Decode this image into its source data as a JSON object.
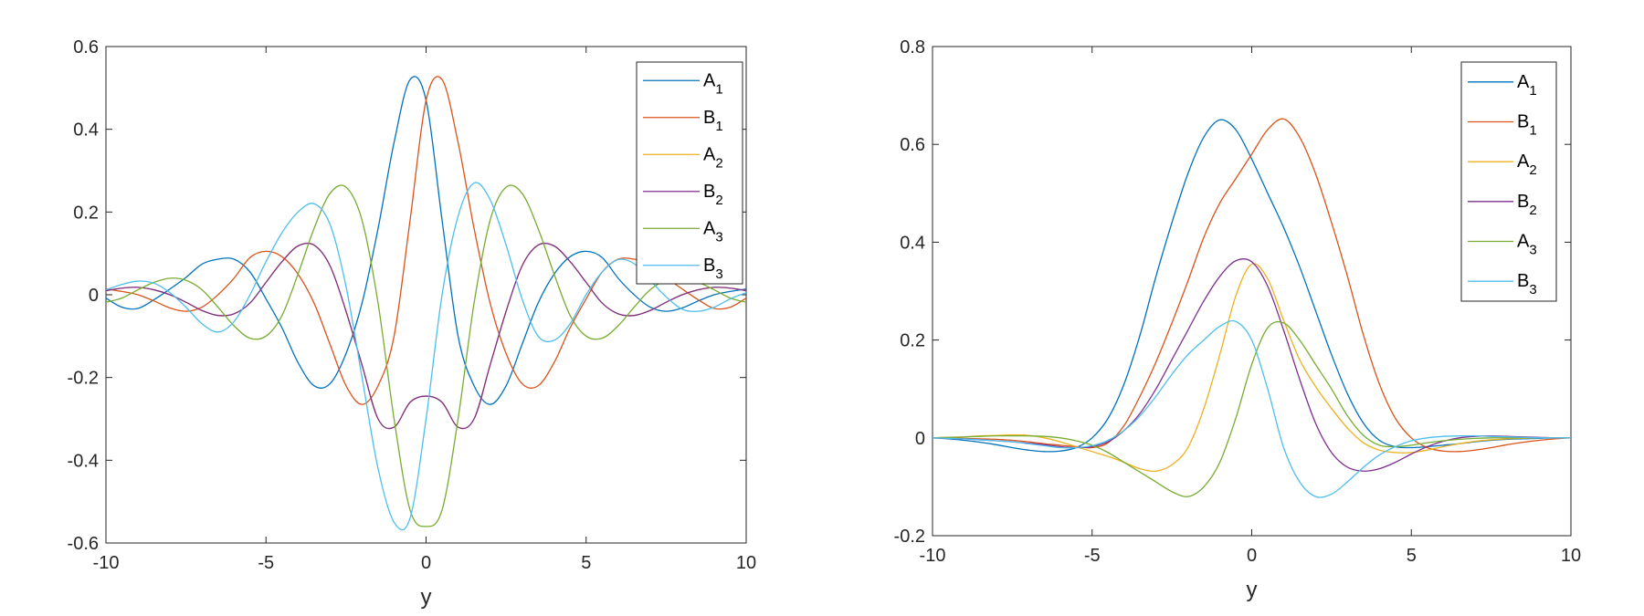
{
  "chart_data": [
    {
      "type": "line",
      "xlabel": "y",
      "ylabel": "",
      "xlim": [
        -10,
        10
      ],
      "ylim": [
        -0.6,
        0.6
      ],
      "xticks": [
        -10,
        -5,
        0,
        5,
        10
      ],
      "yticks": [
        -0.6,
        -0.4,
        -0.2,
        0,
        0.2,
        0.4,
        0.6
      ],
      "xtick_labels": [
        "-10",
        "-5",
        "0",
        "5",
        "10"
      ],
      "ytick_labels": [
        "-0.6",
        "-0.4",
        "-0.2",
        "0",
        "0.2",
        "0.4",
        "0.6"
      ],
      "grid": false,
      "legend_position": "top-right",
      "x": [
        -10,
        -9.5,
        -9,
        -8.5,
        -8,
        -7.5,
        -7,
        -6.5,
        -6,
        -5.5,
        -5,
        -4.5,
        -4,
        -3.5,
        -3,
        -2.5,
        -2,
        -1.5,
        -1,
        -0.5,
        0,
        0.5,
        1,
        1.5,
        2,
        2.5,
        3,
        3.5,
        4,
        4.5,
        5,
        5.5,
        6,
        6.5,
        7,
        7.5,
        8,
        8.5,
        9,
        9.5,
        10
      ],
      "series": [
        {
          "base": "A",
          "sub": "1",
          "color": "#0072BD",
          "values": [
            -0.008,
            -0.03,
            -0.033,
            -0.012,
            0.014,
            0.042,
            0.074,
            0.086,
            0.086,
            0.055,
            -0.01,
            -0.08,
            -0.164,
            -0.22,
            -0.215,
            -0.142,
            -0.02,
            0.16,
            0.368,
            0.52,
            0.47,
            0.18,
            -0.1,
            -0.22,
            -0.265,
            -0.22,
            -0.12,
            -0.02,
            0.05,
            0.092,
            0.105,
            0.09,
            0.04,
            0.0,
            -0.03,
            -0.04,
            -0.032,
            -0.015,
            0.0,
            0.008,
            0.014
          ]
        },
        {
          "base": "B",
          "sub": "1",
          "color": "#D95319",
          "values": [
            0.014,
            0.008,
            0.0,
            -0.015,
            -0.032,
            -0.04,
            -0.03,
            0.0,
            0.04,
            0.09,
            0.105,
            0.092,
            0.05,
            -0.02,
            -0.12,
            -0.22,
            -0.265,
            -0.22,
            -0.1,
            0.18,
            0.47,
            0.52,
            0.368,
            0.16,
            -0.02,
            -0.142,
            -0.215,
            -0.22,
            -0.164,
            -0.08,
            -0.01,
            0.055,
            0.086,
            0.086,
            0.074,
            0.042,
            0.014,
            -0.012,
            -0.033,
            -0.03,
            -0.008
          ]
        },
        {
          "base": "A",
          "sub": "2",
          "color": "#EDB120",
          "values": [
            0.01,
            0.016,
            0.018,
            0.012,
            0.0,
            -0.018,
            -0.038,
            -0.05,
            -0.046,
            -0.02,
            0.03,
            0.08,
            0.118,
            0.12,
            0.07,
            -0.04,
            -0.17,
            -0.3,
            -0.32,
            -0.26,
            -0.245,
            -0.26,
            -0.32,
            -0.3,
            -0.17,
            -0.04,
            0.07,
            0.12,
            0.118,
            0.08,
            0.03,
            -0.02,
            -0.046,
            -0.05,
            -0.038,
            -0.018,
            0.0,
            0.012,
            0.018,
            0.016,
            0.01
          ]
        },
        {
          "base": "B",
          "sub": "2",
          "color": "#7E2F8E",
          "values": [
            0.01,
            0.016,
            0.018,
            0.012,
            0.0,
            -0.018,
            -0.038,
            -0.05,
            -0.046,
            -0.02,
            0.03,
            0.08,
            0.118,
            0.12,
            0.07,
            -0.04,
            -0.17,
            -0.3,
            -0.32,
            -0.26,
            -0.245,
            -0.26,
            -0.32,
            -0.3,
            -0.17,
            -0.04,
            0.07,
            0.12,
            0.118,
            0.08,
            0.03,
            -0.02,
            -0.046,
            -0.05,
            -0.038,
            -0.018,
            0.0,
            0.012,
            0.018,
            0.016,
            0.01
          ]
        },
        {
          "base": "A",
          "sub": "3",
          "color": "#77AC30",
          "values": [
            -0.018,
            -0.008,
            0.012,
            0.03,
            0.04,
            0.035,
            0.012,
            -0.03,
            -0.075,
            -0.105,
            -0.1,
            -0.05,
            0.05,
            0.16,
            0.245,
            0.26,
            0.18,
            -0.02,
            -0.3,
            -0.52,
            -0.56,
            -0.52,
            -0.3,
            -0.02,
            0.18,
            0.26,
            0.245,
            0.16,
            0.05,
            -0.05,
            -0.1,
            -0.105,
            -0.075,
            -0.03,
            0.012,
            0.035,
            0.04,
            0.03,
            0.012,
            -0.008,
            -0.018
          ]
        },
        {
          "base": "B",
          "sub": "3",
          "color": "#4DBEEE",
          "values": [
            0.012,
            0.025,
            0.033,
            0.028,
            0.005,
            -0.03,
            -0.07,
            -0.09,
            -0.065,
            0.0,
            0.08,
            0.15,
            0.2,
            0.22,
            0.17,
            0.02,
            -0.2,
            -0.42,
            -0.55,
            -0.54,
            -0.3,
            0.0,
            0.19,
            0.27,
            0.23,
            0.12,
            -0.01,
            -0.1,
            -0.11,
            -0.07,
            0.0,
            0.055,
            0.085,
            0.075,
            0.035,
            -0.005,
            -0.035,
            -0.04,
            -0.03,
            -0.01,
            0.005
          ]
        }
      ]
    },
    {
      "type": "line",
      "xlabel": "y",
      "ylabel": "",
      "xlim": [
        -10,
        10
      ],
      "ylim": [
        -0.2,
        0.8
      ],
      "xticks": [
        -10,
        -5,
        0,
        5,
        10
      ],
      "yticks": [
        -0.2,
        0,
        0.2,
        0.4,
        0.6,
        0.8
      ],
      "xtick_labels": [
        "-10",
        "-5",
        "0",
        "5",
        "10"
      ],
      "ytick_labels": [
        "-0.2",
        "0",
        "0.2",
        "0.4",
        "0.6",
        "0.8"
      ],
      "grid": false,
      "legend_position": "top-right",
      "x": [
        -10,
        -9.5,
        -9,
        -8.5,
        -8,
        -7.5,
        -7,
        -6.5,
        -6,
        -5.5,
        -5,
        -4.5,
        -4,
        -3.5,
        -3,
        -2.5,
        -2,
        -1.5,
        -1,
        -0.5,
        0,
        0.5,
        1,
        1.5,
        2,
        2.5,
        3,
        3.5,
        4,
        4.5,
        5,
        5.5,
        6,
        6.5,
        7,
        7.5,
        8,
        8.5,
        9,
        9.5,
        10
      ],
      "series": [
        {
          "base": "A",
          "sub": "1",
          "color": "#0072BD",
          "values": [
            0.0,
            -0.002,
            -0.005,
            -0.009,
            -0.014,
            -0.02,
            -0.025,
            -0.028,
            -0.027,
            -0.02,
            0.0,
            0.04,
            0.11,
            0.21,
            0.33,
            0.44,
            0.54,
            0.615,
            0.65,
            0.63,
            0.57,
            0.5,
            0.43,
            0.35,
            0.26,
            0.17,
            0.09,
            0.03,
            -0.005,
            -0.018,
            -0.02,
            -0.018,
            -0.015,
            -0.012,
            -0.008,
            -0.005,
            -0.003,
            -0.002,
            -0.001,
            0.0,
            0.0
          ]
        },
        {
          "base": "B",
          "sub": "1",
          "color": "#D95319",
          "values": [
            0.0,
            0.0,
            -0.001,
            -0.002,
            -0.003,
            -0.005,
            -0.008,
            -0.012,
            -0.015,
            -0.018,
            -0.02,
            -0.01,
            0.025,
            0.085,
            0.155,
            0.235,
            0.32,
            0.41,
            0.48,
            0.53,
            0.58,
            0.63,
            0.652,
            0.615,
            0.54,
            0.44,
            0.33,
            0.21,
            0.11,
            0.04,
            0.0,
            -0.02,
            -0.027,
            -0.028,
            -0.025,
            -0.02,
            -0.014,
            -0.009,
            -0.005,
            -0.002,
            0.0
          ]
        },
        {
          "base": "A",
          "sub": "2",
          "color": "#EDB120",
          "values": [
            0.0,
            0.001,
            0.002,
            0.004,
            0.005,
            0.006,
            0.005,
            0.0,
            -0.008,
            -0.018,
            -0.028,
            -0.038,
            -0.05,
            -0.063,
            -0.068,
            -0.055,
            -0.02,
            0.06,
            0.17,
            0.29,
            0.355,
            0.325,
            0.24,
            0.16,
            0.105,
            0.06,
            0.02,
            -0.01,
            -0.025,
            -0.03,
            -0.03,
            -0.025,
            -0.018,
            -0.012,
            -0.007,
            -0.004,
            -0.002,
            -0.001,
            0.0,
            0.0,
            0.0
          ]
        },
        {
          "base": "B",
          "sub": "2",
          "color": "#7E2F8E",
          "values": [
            0.0,
            -0.001,
            -0.002,
            -0.004,
            -0.006,
            -0.008,
            -0.011,
            -0.014,
            -0.018,
            -0.02,
            -0.018,
            -0.008,
            0.015,
            0.05,
            0.1,
            0.16,
            0.22,
            0.28,
            0.33,
            0.362,
            0.36,
            0.31,
            0.22,
            0.12,
            0.03,
            -0.03,
            -0.06,
            -0.068,
            -0.063,
            -0.05,
            -0.033,
            -0.018,
            -0.007,
            0.0,
            0.003,
            0.004,
            0.003,
            0.002,
            0.001,
            0.0,
            0.0
          ]
        },
        {
          "base": "A",
          "sub": "3",
          "color": "#77AC30",
          "values": [
            0.0,
            0.001,
            0.002,
            0.003,
            0.004,
            0.004,
            0.004,
            0.003,
            0.0,
            -0.006,
            -0.015,
            -0.03,
            -0.05,
            -0.07,
            -0.09,
            -0.11,
            -0.12,
            -0.1,
            -0.05,
            0.04,
            0.15,
            0.225,
            0.235,
            0.2,
            0.15,
            0.1,
            0.045,
            0.005,
            -0.015,
            -0.018,
            -0.015,
            -0.01,
            -0.006,
            -0.003,
            -0.001,
            0.0,
            0.0,
            0.0,
            0.0,
            0.0,
            0.0
          ]
        },
        {
          "base": "B",
          "sub": "3",
          "color": "#4DBEEE",
          "values": [
            0.0,
            -0.001,
            -0.002,
            -0.004,
            -0.006,
            -0.008,
            -0.012,
            -0.016,
            -0.02,
            -0.02,
            -0.016,
            -0.005,
            0.015,
            0.045,
            0.085,
            0.13,
            0.17,
            0.2,
            0.228,
            0.238,
            0.2,
            0.1,
            -0.02,
            -0.09,
            -0.12,
            -0.115,
            -0.09,
            -0.06,
            -0.035,
            -0.018,
            -0.006,
            0.0,
            0.003,
            0.004,
            0.004,
            0.003,
            0.002,
            0.001,
            0.0,
            0.0,
            0.0
          ]
        }
      ]
    }
  ]
}
